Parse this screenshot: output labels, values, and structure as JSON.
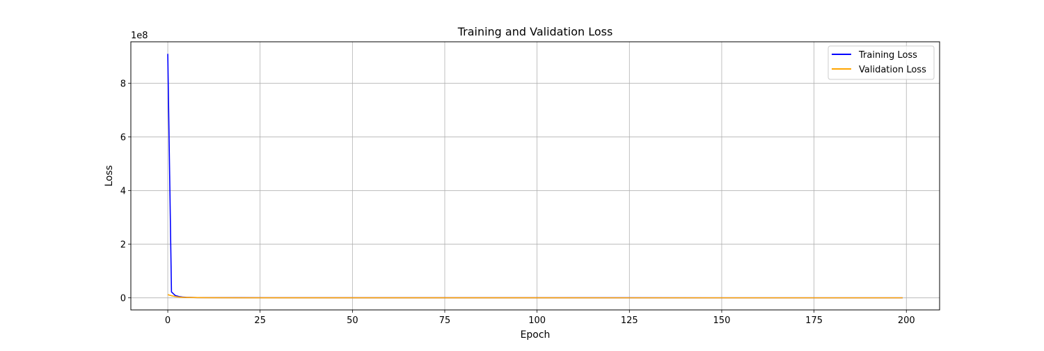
{
  "chart_data": {
    "type": "line",
    "title": "Training and Validation Loss",
    "xlabel": "Epoch",
    "ylabel": "Loss",
    "y_offset_label": "1e8",
    "xlim": [
      -10,
      209
    ],
    "ylim": [
      -45000000,
      955000000
    ],
    "x_ticks": [
      0,
      25,
      50,
      75,
      100,
      125,
      150,
      175,
      200
    ],
    "y_ticks": [
      0,
      200000000,
      400000000,
      600000000,
      800000000
    ],
    "y_tick_labels": [
      "0",
      "2",
      "4",
      "6",
      "8"
    ],
    "x_tick_labels": [
      "0",
      "25",
      "50",
      "75",
      "100",
      "125",
      "150",
      "175",
      "200"
    ],
    "grid": true,
    "legend_position": "top-right",
    "series": [
      {
        "name": "Training Loss",
        "color": "#0000ff",
        "x": [
          0,
          1,
          2,
          3,
          4,
          5,
          6,
          8,
          10,
          20,
          50,
          100,
          150,
          199
        ],
        "y": [
          910000000,
          22000000,
          9000000,
          5000000,
          3000000,
          2000000,
          1500000,
          1000000,
          800000,
          500000,
          300000,
          200000,
          150000,
          120000
        ]
      },
      {
        "name": "Validation Loss",
        "color": "#ffa500",
        "x": [
          0,
          1,
          2,
          3,
          4,
          5,
          6,
          8,
          10,
          20,
          50,
          100,
          150,
          199
        ],
        "y": [
          12000000,
          8000000,
          5000000,
          3000000,
          2000000,
          1500000,
          1200000,
          900000,
          700000,
          400000,
          250000,
          180000,
          140000,
          110000
        ]
      }
    ]
  }
}
